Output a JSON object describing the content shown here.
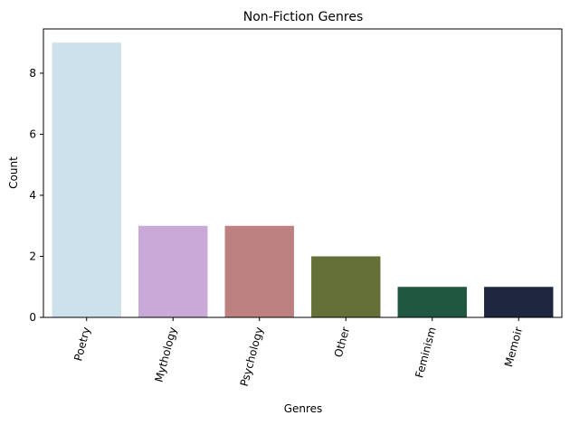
{
  "chart_data": {
    "type": "bar",
    "title": "Non-Fiction Genres",
    "xlabel": "Genres",
    "ylabel": "Count",
    "categories": [
      "Poetry",
      "Mythology",
      "Psychology",
      "Other",
      "Feminism",
      "Memoir"
    ],
    "values": [
      9,
      3,
      3,
      2,
      1,
      1
    ],
    "colors": [
      "#cde1ec",
      "#c9a9d8",
      "#be8181",
      "#647038",
      "#205740",
      "#1f2640"
    ],
    "ylim": [
      0,
      9.45
    ],
    "yticks": [
      0,
      2,
      4,
      6,
      8
    ],
    "grid": false,
    "legend": "none"
  }
}
